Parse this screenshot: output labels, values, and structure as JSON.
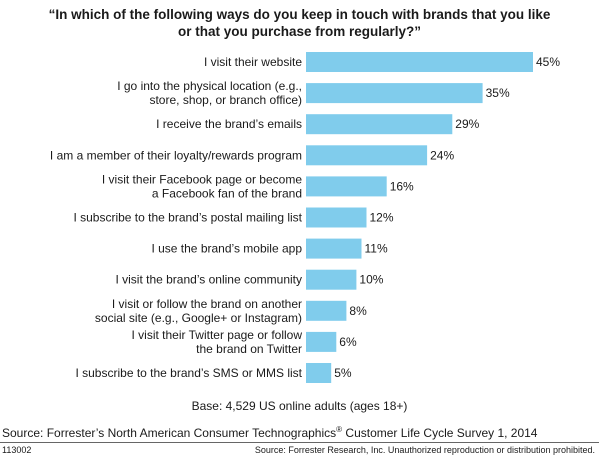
{
  "chart_data": {
    "type": "bar",
    "orientation": "horizontal",
    "title_lines": [
      "“In which of the following ways do you keep in touch with brands that you like",
      "or that you purchase from regularly?”"
    ],
    "categories": [
      [
        "I visit their website"
      ],
      [
        "I go into the physical location (e.g.,",
        "store, shop, or branch office)"
      ],
      [
        "I receive the brand’s emails"
      ],
      [
        "I am a member of their loyalty/rewards program"
      ],
      [
        "I visit their Facebook page or become",
        "a Facebook fan of the brand"
      ],
      [
        "I subscribe to the brand’s postal mailing list"
      ],
      [
        "I use the brand’s mobile app"
      ],
      [
        "I visit the brand’s online community"
      ],
      [
        "I visit or follow the brand on another",
        "social site (e.g., Google+ or Instagram)"
      ],
      [
        "I visit their Twitter page or follow",
        "the brand on Twitter"
      ],
      [
        "I subscribe to the brand’s SMS or MMS list"
      ]
    ],
    "values": [
      45,
      35,
      29,
      24,
      16,
      12,
      11,
      10,
      8,
      6,
      5
    ],
    "value_labels": [
      "45%",
      "35%",
      "29%",
      "24%",
      "16%",
      "12%",
      "11%",
      "10%",
      "8%",
      "6%",
      "5%"
    ],
    "unit": "%",
    "xlim": [
      0,
      45
    ],
    "bar_color": "#80ccec",
    "grid": false,
    "legend": "none"
  },
  "base_note": "Base: 4,529 US online adults (ages 18+)",
  "source": {
    "text": "Source: Forrester’s North American Consumer Technographics",
    "mark": "®",
    "text_after": " Customer Life Cycle Survey 1, 2014"
  },
  "footer": {
    "id": "113002",
    "copyright": "Source: Forrester Research, Inc. Unauthorized reproduction or distribution prohibited."
  }
}
